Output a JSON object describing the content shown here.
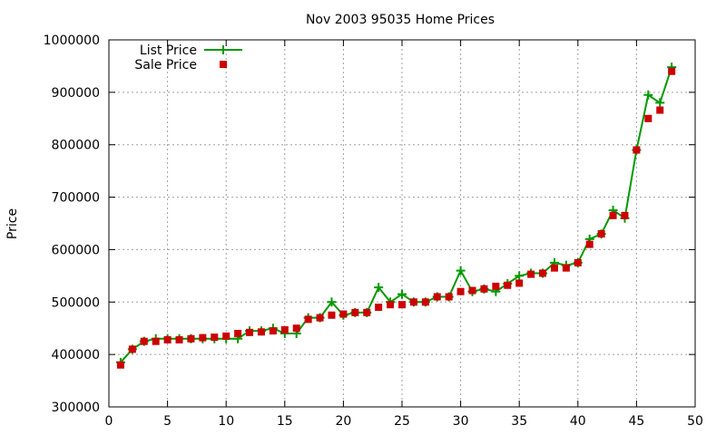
{
  "chart_data": {
    "type": "line",
    "title": "Nov 2003 95035 Home Prices",
    "xlabel": "",
    "ylabel": "Price",
    "xlim": [
      0,
      50
    ],
    "ylim": [
      300000,
      1000000
    ],
    "xticks": [
      0,
      5,
      10,
      15,
      20,
      25,
      30,
      35,
      40,
      45,
      50
    ],
    "yticks": [
      300000,
      400000,
      500000,
      600000,
      700000,
      800000,
      900000,
      1000000
    ],
    "grid": true,
    "legend_position": "top-left",
    "series": [
      {
        "name": "List Price",
        "style": "line-with-plus-markers",
        "color": "#009900",
        "x": [
          1,
          2,
          3,
          4,
          5,
          6,
          7,
          8,
          9,
          10,
          11,
          12,
          13,
          14,
          15,
          16,
          17,
          18,
          19,
          20,
          21,
          22,
          23,
          24,
          25,
          26,
          27,
          28,
          29,
          30,
          31,
          32,
          33,
          34,
          35,
          36,
          37,
          38,
          39,
          40,
          41,
          42,
          43,
          44,
          45,
          46,
          47,
          48
        ],
        "values": [
          385000,
          410000,
          425000,
          430000,
          430000,
          430000,
          430000,
          430000,
          430000,
          430000,
          430000,
          445000,
          445000,
          450000,
          440000,
          440000,
          470000,
          470000,
          500000,
          475000,
          480000,
          480000,
          528000,
          500000,
          515000,
          500000,
          500000,
          510000,
          510000,
          560000,
          520000,
          525000,
          520000,
          535000,
          550000,
          555000,
          555000,
          575000,
          570000,
          575000,
          620000,
          630000,
          675000,
          660000,
          790000,
          895000,
          880000,
          948000
        ]
      },
      {
        "name": "Sale Price",
        "style": "square-markers",
        "color": "#cc0000",
        "x": [
          1,
          2,
          3,
          4,
          5,
          6,
          7,
          8,
          9,
          10,
          11,
          12,
          13,
          14,
          15,
          16,
          17,
          18,
          19,
          20,
          21,
          22,
          23,
          24,
          25,
          26,
          27,
          28,
          29,
          30,
          31,
          32,
          33,
          34,
          35,
          36,
          37,
          38,
          39,
          40,
          41,
          42,
          43,
          44,
          45,
          46,
          47,
          48
        ],
        "values": [
          380000,
          410000,
          425000,
          425000,
          428000,
          428000,
          430000,
          432000,
          433000,
          435000,
          440000,
          442000,
          443000,
          445000,
          447000,
          450000,
          467000,
          470000,
          475000,
          477000,
          480000,
          480000,
          490000,
          495000,
          495000,
          500000,
          500000,
          510000,
          510000,
          520000,
          522000,
          525000,
          530000,
          532000,
          536000,
          553000,
          555000,
          565000,
          565000,
          575000,
          610000,
          630000,
          665000,
          665000,
          790000,
          850000,
          866000,
          940000
        ]
      }
    ]
  }
}
